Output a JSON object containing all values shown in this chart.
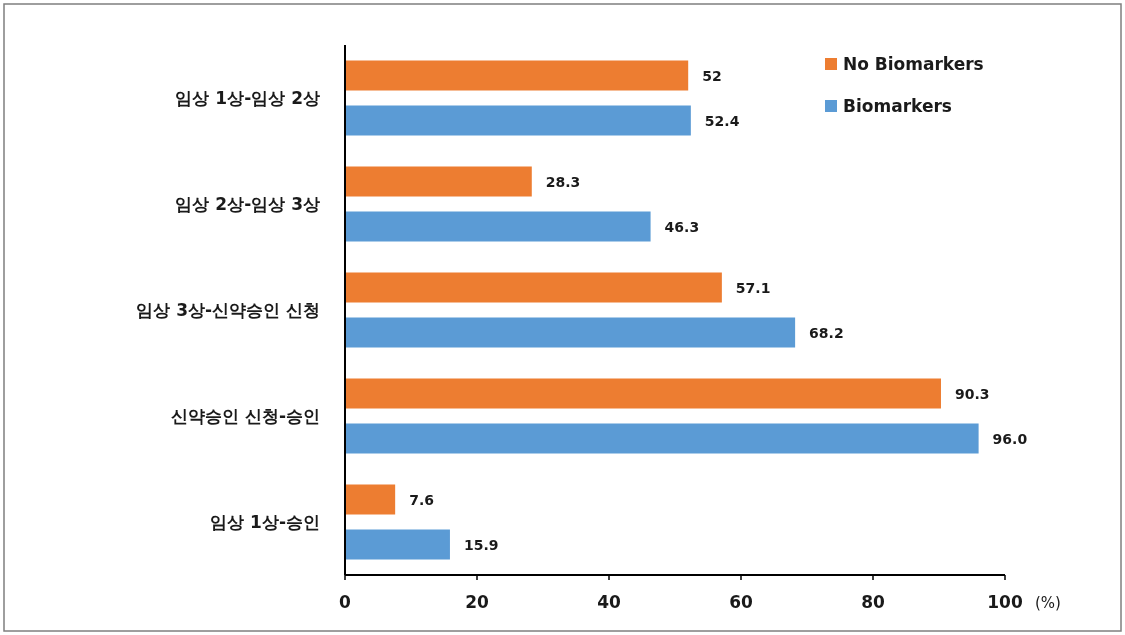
{
  "chart_data": {
    "type": "bar",
    "orientation": "horizontal",
    "categories": [
      "임상 1상-임상 2상",
      "임상 2상-임상 3상",
      "임상 3상-신약승인 신청",
      "신약승인 신청-승인",
      "임상 1상-승인"
    ],
    "series": [
      {
        "name": "No Biomarkers",
        "color": "#ed7d31",
        "values": [
          52,
          28.3,
          57.1,
          90.3,
          7.6
        ],
        "value_labels": [
          "52",
          "28.3",
          "57.1",
          "90.3",
          "7.6"
        ]
      },
      {
        "name": "Biomarkers",
        "color": "#5b9bd5",
        "values": [
          52.4,
          46.3,
          68.2,
          96.0,
          15.9
        ],
        "value_labels": [
          "52.4",
          "46.3",
          "68.2",
          "96.0",
          "15.9"
        ]
      }
    ],
    "xlim": [
      0,
      100
    ],
    "xticks": [
      0,
      20,
      40,
      60,
      80,
      100
    ],
    "xlabel": "(%)",
    "legend": "top right"
  }
}
